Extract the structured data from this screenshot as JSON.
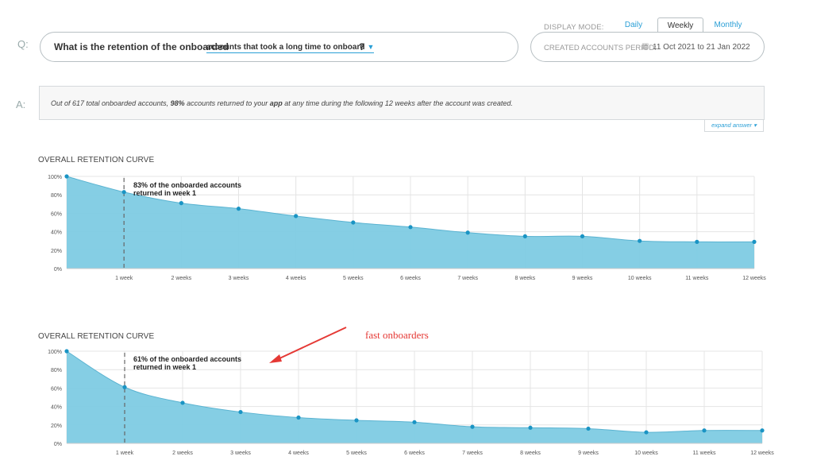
{
  "question": {
    "label": "Q:",
    "prefix": "What is the retention of the onboarded",
    "dropdown": "accounts that took a long time to onboard",
    "suffix": "?"
  },
  "display_mode": {
    "label": "DISPLAY MODE:",
    "tabs": [
      "Daily",
      "Weekly",
      "Monthly"
    ],
    "active": "Weekly"
  },
  "period": {
    "label": "CREATED ACCOUNTS PERIOD:",
    "value": "11 Oct 2021 to 21 Jan 2022"
  },
  "answer": {
    "label": "A:",
    "part1": "Out of 617 total onboarded accounts,",
    "pct": "98%",
    "part2": "accounts returned to your",
    "app": "app",
    "part3": "at any time during the following 12 weeks after the account was created.",
    "expand_label": "expand answer"
  },
  "annotation_arrow_label": "fast onboarders",
  "colors": {
    "accent": "#2a9fd6",
    "area_fill": "#7ecbe3",
    "point": "#1a94c4",
    "arrow": "#e53935"
  },
  "chart_data": [
    {
      "type": "area",
      "title": "OVERALL RETENTION CURVE",
      "categories": [
        "",
        "1 week",
        "2 weeks",
        "3 weeks",
        "4 weeks",
        "5 weeks",
        "6 weeks",
        "7 weeks",
        "8 weeks",
        "9 weeks",
        "10 weeks",
        "11 weeks",
        "12 weeks"
      ],
      "values": [
        100,
        83,
        71,
        65,
        57,
        50,
        45,
        39,
        35,
        35,
        30,
        29,
        29
      ],
      "y_ticks": [
        "0%",
        "20%",
        "40%",
        "60%",
        "80%",
        "100%"
      ],
      "ylim": [
        0,
        100
      ],
      "grid": true,
      "callout": {
        "at_week": 1,
        "lines": [
          "83% of the onboarded accounts",
          "returned in week 1"
        ]
      }
    },
    {
      "type": "area",
      "title": "OVERALL RETENTION CURVE",
      "categories": [
        "",
        "1 week",
        "2 weeks",
        "3 weeks",
        "4 weeks",
        "5 weeks",
        "6 weeks",
        "7 weeks",
        "8 weeks",
        "9 weeks",
        "10 weeks",
        "11 weeks",
        "12 weeks"
      ],
      "values": [
        100,
        61,
        44,
        34,
        28,
        25,
        23,
        18,
        17,
        16,
        12,
        14,
        14
      ],
      "y_ticks": [
        "0%",
        "20%",
        "40%",
        "60%",
        "80%",
        "100%"
      ],
      "ylim": [
        0,
        100
      ],
      "grid": true,
      "callout": {
        "at_week": 1,
        "lines": [
          "61% of the onboarded accounts",
          "returned in week 1"
        ]
      }
    }
  ]
}
